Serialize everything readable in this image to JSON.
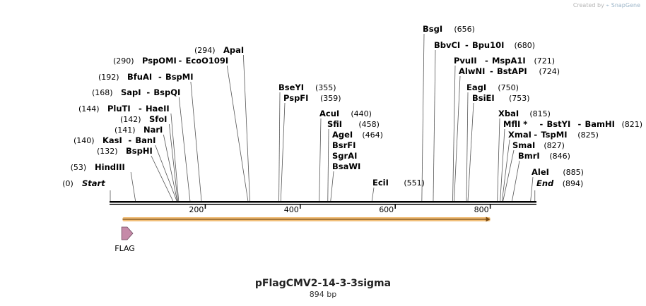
{
  "credit": {
    "prefix": "Created by",
    "brand": "SnapGene"
  },
  "map": {
    "title": "pFlagCMV2-14-3-3sigma",
    "length_label": "894 bp",
    "length": 894,
    "ruler_ticks": [
      {
        "value": 200,
        "label": "200"
      },
      {
        "value": 400,
        "label": "400"
      },
      {
        "value": 600,
        "label": "600"
      },
      {
        "value": 800,
        "label": "800"
      }
    ]
  },
  "sites": [
    {
      "pos": 0,
      "pos_label": "(0)",
      "names": [
        "Start"
      ],
      "special": true
    },
    {
      "pos": 53,
      "pos_label": "(53)",
      "names": [
        "HindIII"
      ]
    },
    {
      "pos": 132,
      "pos_label": "(132)",
      "names": [
        "BspHI"
      ]
    },
    {
      "pos": 140,
      "pos_label": "(140)",
      "names": [
        "KasI",
        "BanI"
      ]
    },
    {
      "pos": 141,
      "pos_label": "(141)",
      "names": [
        "NarI"
      ]
    },
    {
      "pos": 142,
      "pos_label": "(142)",
      "names": [
        "SfoI"
      ]
    },
    {
      "pos": 144,
      "pos_label": "(144)",
      "names": [
        "PluTI",
        "HaeII"
      ]
    },
    {
      "pos": 168,
      "pos_label": "(168)",
      "names": [
        "SapI",
        "BspQI"
      ]
    },
    {
      "pos": 192,
      "pos_label": "(192)",
      "names": [
        "BfuAI",
        "BspMI"
      ]
    },
    {
      "pos": 290,
      "pos_label": "(290)",
      "names": [
        "PspOMI",
        "EcoO109I"
      ]
    },
    {
      "pos": 294,
      "pos_label": "(294)",
      "names": [
        "ApaI"
      ]
    },
    {
      "pos": 355,
      "pos_label": "(355)",
      "names": [
        "BseYI"
      ]
    },
    {
      "pos": 359,
      "pos_label": "(359)",
      "names": [
        "PspFI"
      ]
    },
    {
      "pos": 440,
      "pos_label": "(440)",
      "names": [
        "AcuI"
      ]
    },
    {
      "pos": 458,
      "pos_label": "(458)",
      "names": [
        "SfiI"
      ]
    },
    {
      "pos": 464,
      "pos_label": "(464)",
      "names": [
        "AgeI",
        "BsrFI",
        "SgrAI",
        "BsaWI"
      ]
    },
    {
      "pos": 551,
      "pos_label": "(551)",
      "names": [
        "EciI"
      ]
    },
    {
      "pos": 656,
      "pos_label": "(656)",
      "names": [
        "BsgI"
      ]
    },
    {
      "pos": 680,
      "pos_label": "(680)",
      "names": [
        "BbvCI",
        "Bpu10I"
      ]
    },
    {
      "pos": 721,
      "pos_label": "(721)",
      "names": [
        "PvuII",
        "MspA1I"
      ]
    },
    {
      "pos": 724,
      "pos_label": "(724)",
      "names": [
        "AlwNI",
        "BstAPI"
      ]
    },
    {
      "pos": 750,
      "pos_label": "(750)",
      "names": [
        "EagI"
      ]
    },
    {
      "pos": 753,
      "pos_label": "(753)",
      "names": [
        "BsiEI"
      ]
    },
    {
      "pos": 815,
      "pos_label": "(815)",
      "names": [
        "XbaI"
      ]
    },
    {
      "pos": 821,
      "pos_label": "(821)",
      "names": [
        "MflI *",
        "BstYI",
        "BamHI"
      ]
    },
    {
      "pos": 825,
      "pos_label": "(825)",
      "names": [
        "XmaI",
        "TspMI"
      ]
    },
    {
      "pos": 827,
      "pos_label": "(827)",
      "names": [
        "SmaI"
      ]
    },
    {
      "pos": 846,
      "pos_label": "(846)",
      "names": [
        "BmrI"
      ]
    },
    {
      "pos": 885,
      "pos_label": "(885)",
      "names": [
        "AleI"
      ]
    },
    {
      "pos": 894,
      "pos_label": "(894)",
      "names": [
        "End"
      ],
      "special": true
    }
  ],
  "features": [
    {
      "name": "FLAG",
      "start": 30,
      "end": 52,
      "type": "tag",
      "color": "#c58aa8"
    },
    {
      "name": "",
      "start": 26,
      "end": 800,
      "type": "orf",
      "color": "#f1bf7a"
    }
  ]
}
